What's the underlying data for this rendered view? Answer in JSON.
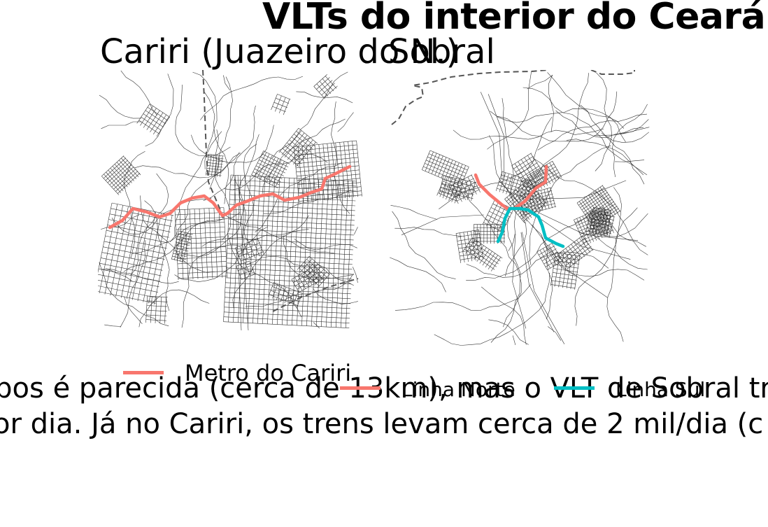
{
  "title": "VLTs do interior do Ceará",
  "panels": [
    {
      "subtitle": "Cariri (Juazeiro do N.)",
      "legend": [
        {
          "label": "Metro do Cariri",
          "color": "#F8766D"
        }
      ]
    },
    {
      "subtitle": "Sobral",
      "legend": [
        {
          "label": "Linha Norte",
          "color": "#F8766D"
        },
        {
          "label": "Linha Sul",
          "color": "#00BFC4"
        }
      ]
    }
  ],
  "caption": {
    "line1": "...pos é parecida (cerca de 13km), mas o VLT de Sobral tra",
    "line2": "or dia. Já no Cariri, os trens levam cerca de 2 mil/dia (c"
  },
  "colors": {
    "street": "#333333",
    "boundary": "#555555",
    "line_red": "#F8766D",
    "line_cyan": "#00BFC4"
  }
}
